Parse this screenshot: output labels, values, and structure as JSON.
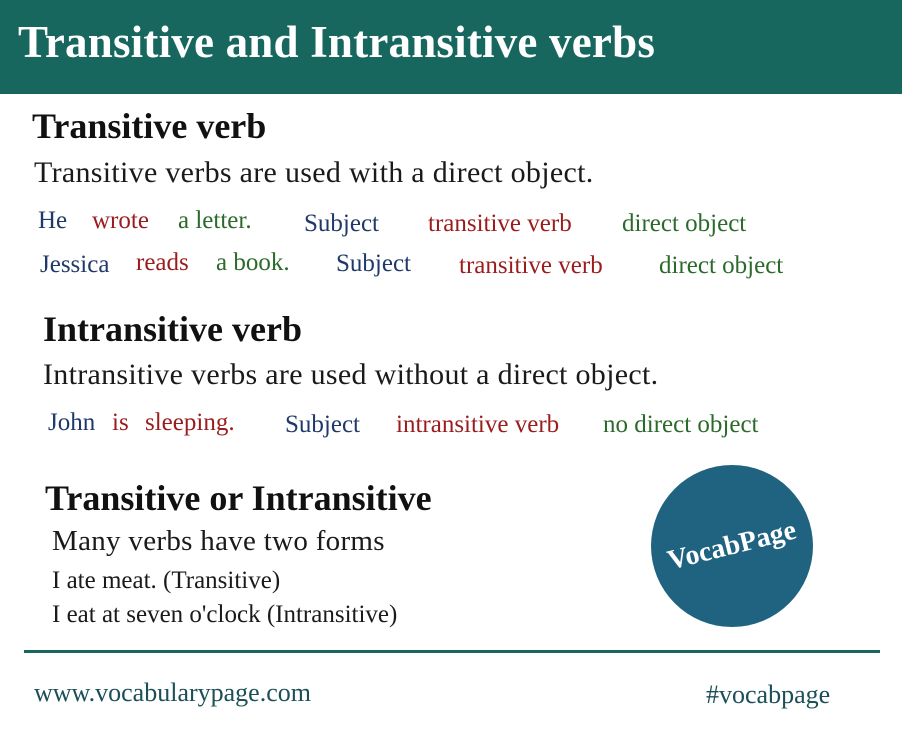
{
  "header": {
    "title": "Transitive and Intransitive verbs"
  },
  "transitive": {
    "heading": "Transitive verb",
    "definition": "Transitive verbs are used with a direct object.",
    "examples": [
      {
        "subject": "He",
        "verb": "wrote",
        "object": "a letter.",
        "label_subject": "Subject",
        "label_verb": "transitive verb",
        "label_object": "direct object"
      },
      {
        "subject": "Jessica",
        "verb": "reads",
        "object": "a book.",
        "label_subject": "Subject",
        "label_verb": "transitive verb",
        "label_object": "direct object"
      }
    ]
  },
  "intransitive": {
    "heading": "Intransitive verb",
    "definition": "Intransitive verbs are used without a direct object.",
    "example": {
      "subject": "John",
      "verb": "is",
      "rest": "sleeping.",
      "label_subject": "Subject",
      "label_verb": "intransitive verb",
      "label_object": "no direct object"
    }
  },
  "both": {
    "heading": "Transitive or Intransitive",
    "text": "Many verbs have two forms",
    "line1": "I ate meat. (Transitive)",
    "line2": "I eat at seven o'clock (Intransitive)"
  },
  "logo": {
    "text": "VocabPage",
    "color": "#1f6380"
  },
  "footer": {
    "url": "www.vocabularypage.com",
    "hashtag": "#vocabpage"
  },
  "colors": {
    "accent": "#17675f",
    "subject": "#1f3a6a",
    "verb": "#9b1c1c",
    "object": "#2b6a2b"
  }
}
